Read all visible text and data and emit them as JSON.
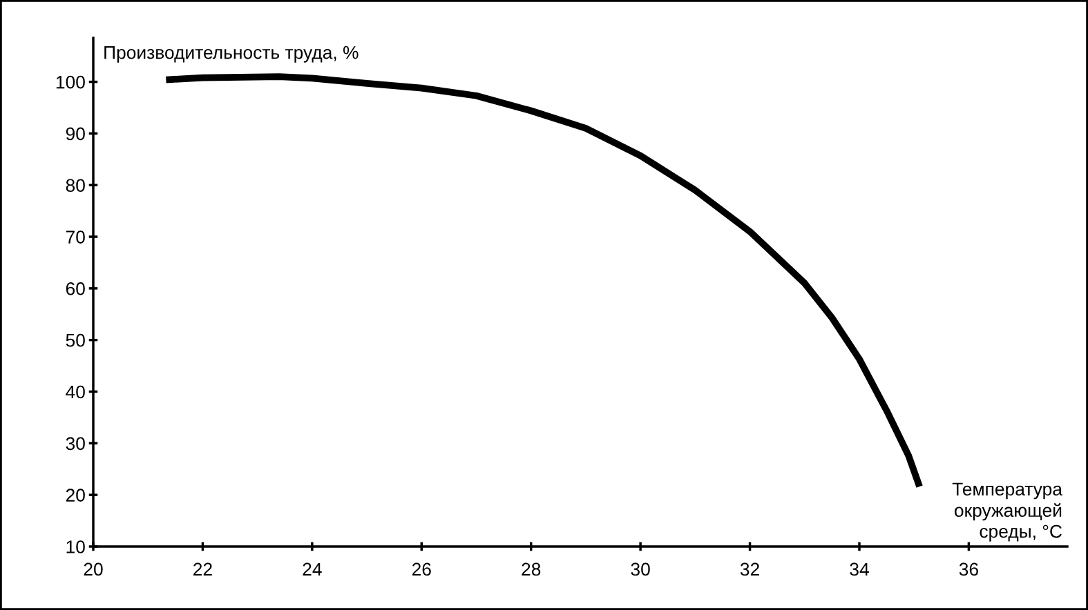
{
  "chart_data": {
    "type": "line",
    "ylabel": "Производительность труда, %",
    "xlabel": "Температура\nокружающей\nсреды, °С",
    "x": [
      21.33,
      22,
      23.4,
      24,
      25,
      26,
      27,
      28,
      29,
      30,
      31,
      32,
      33,
      33.5,
      34,
      34.5,
      34.9,
      35.1
    ],
    "series": [
      {
        "color": "#000000",
        "values": [
          100.4,
          100.8,
          101,
          100.7,
          99.7,
          98.8,
          97.3,
          94.4,
          91,
          85.7,
          79,
          71,
          61,
          54.3,
          46.3,
          36.3,
          27.6,
          21.6
        ]
      }
    ],
    "xlim": [
      20,
      37.8
    ],
    "ylim": [
      10,
      108.5
    ],
    "xticks": [
      20,
      22,
      24,
      26,
      28,
      30,
      32,
      34,
      36
    ],
    "yticks": [
      10,
      20,
      30,
      40,
      50,
      60,
      70,
      80,
      90,
      100
    ],
    "grid": false,
    "legend": false,
    "marker": "none",
    "line_style": "solid"
  }
}
